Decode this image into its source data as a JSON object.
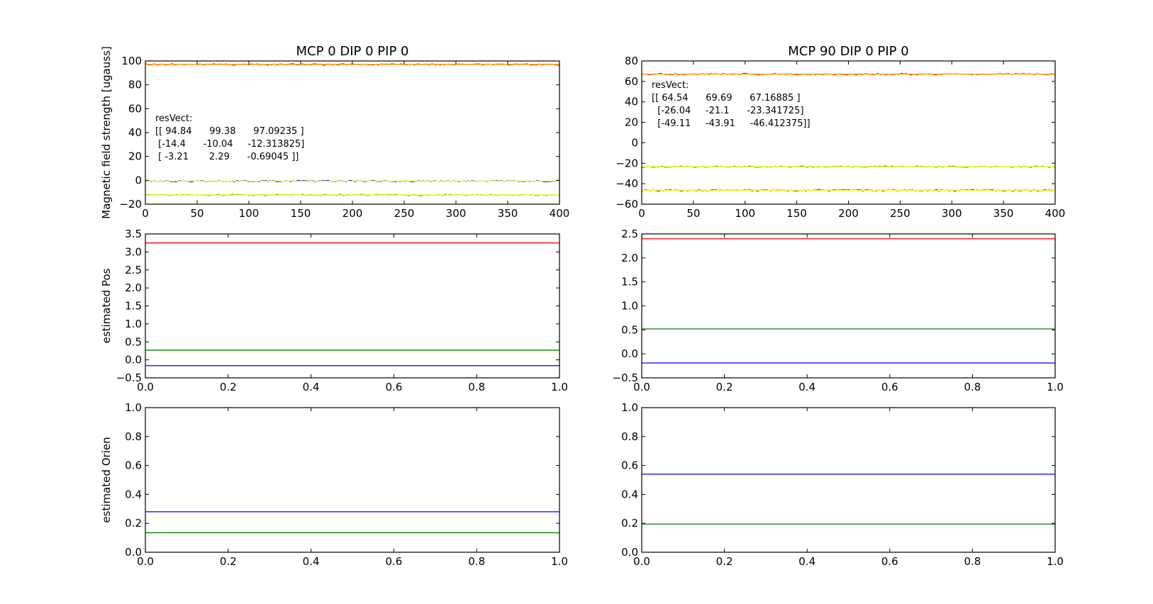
{
  "colors": {
    "x_measured": "#0000ff",
    "y_measured": "#008000",
    "z_measured": "#ff0000",
    "x_fit": "#ffff00",
    "y_fit": "#ffff00",
    "z_fit": "#ffa500"
  },
  "chart_data": [
    {
      "id": "field-left",
      "type": "line",
      "title": "MCP 0 DIP 0 PIP 0",
      "ylabel": "Magnetic field strength [ugauss]",
      "xlabel": "",
      "xlim": [
        0,
        400
      ],
      "ylim": [
        -20,
        100
      ],
      "xticks": [
        "0",
        "50",
        "100",
        "150",
        "200",
        "250",
        "300",
        "350",
        "400"
      ],
      "yticks": [
        "−20",
        "0",
        "20",
        "40",
        "60",
        "80",
        "100"
      ],
      "series": [
        {
          "key": "z",
          "color": "#ff0000",
          "fit_color": "#ffa500",
          "mean": 97.09235,
          "fit": 97.09235,
          "noise": 0.9
        },
        {
          "key": "x",
          "color": "#0000ff",
          "fit_color": "#ffff00",
          "mean": -0.69045,
          "fit": -0.69045,
          "noise": 0.8
        },
        {
          "key": "y",
          "color": "#008000",
          "fit_color": "#ffff00",
          "mean": -12.313825,
          "fit": -12.313825,
          "noise": 0.8
        }
      ],
      "annotation": {
        "header": "resVect:",
        "lines": [
          "[[ 94.84      99.38      97.09235 ]",
          " [-14.4      -10.04     -12.313825]",
          " [ -3.21       2.29      -0.69045 ]]"
        ]
      }
    },
    {
      "id": "field-right",
      "type": "line",
      "title": "MCP 90 DIP 0 PIP 0",
      "ylabel": "",
      "xlabel": "",
      "xlim": [
        0,
        400
      ],
      "ylim": [
        -60,
        80
      ],
      "xticks": [
        "0",
        "50",
        "100",
        "150",
        "200",
        "250",
        "300",
        "350",
        "400"
      ],
      "yticks": [
        "−60",
        "−40",
        "−20",
        "0",
        "20",
        "40",
        "60",
        "80"
      ],
      "series": [
        {
          "key": "z",
          "color": "#ff0000",
          "fit_color": "#ffa500",
          "mean": 67.16885,
          "fit": 67.16885,
          "noise": 1.0
        },
        {
          "key": "y",
          "color": "#008000",
          "fit_color": "#ffff00",
          "mean": -23.341725,
          "fit": -23.341725,
          "noise": 0.9
        },
        {
          "key": "x",
          "color": "#0000ff",
          "fit_color": "#ffff00",
          "mean": -46.412375,
          "fit": -46.412375,
          "noise": 0.9
        }
      ],
      "annotation": {
        "header": "resVect:",
        "lines": [
          "[[ 64.54      69.69      67.16885 ]",
          "  [-26.04     -21.1      -23.341725]",
          "  [-49.11     -43.91     -46.412375]]"
        ]
      }
    },
    {
      "id": "pos-left",
      "type": "line",
      "title": "",
      "ylabel": "estimated Pos",
      "xlabel": "",
      "xlim": [
        0,
        1
      ],
      "ylim": [
        -0.5,
        3.5
      ],
      "xticks": [
        "0.0",
        "0.2",
        "0.4",
        "0.6",
        "0.8",
        "1.0"
      ],
      "yticks": [
        "−0.5",
        "0.0",
        "0.5",
        "1.0",
        "1.5",
        "2.0",
        "2.5",
        "3.0",
        "3.5"
      ],
      "series": [
        {
          "key": "z",
          "color": "#ff0000",
          "value": 3.25
        },
        {
          "key": "y",
          "color": "#008000",
          "value": 0.27
        },
        {
          "key": "x",
          "color": "#0000ff",
          "value": -0.16
        }
      ]
    },
    {
      "id": "pos-right",
      "type": "line",
      "title": "",
      "ylabel": "",
      "xlabel": "",
      "xlim": [
        0,
        1
      ],
      "ylim": [
        -0.5,
        2.5
      ],
      "xticks": [
        "0.0",
        "0.2",
        "0.4",
        "0.6",
        "0.8",
        "1.0"
      ],
      "yticks": [
        "−0.5",
        "0.0",
        "0.5",
        "1.0",
        "1.5",
        "2.0",
        "2.5"
      ],
      "series": [
        {
          "key": "z",
          "color": "#ff0000",
          "value": 2.4
        },
        {
          "key": "y",
          "color": "#008000",
          "value": 0.52
        },
        {
          "key": "x",
          "color": "#0000ff",
          "value": -0.19
        }
      ]
    },
    {
      "id": "orien-left",
      "type": "line",
      "title": "",
      "ylabel": "estimated Orien",
      "xlabel": "",
      "xlim": [
        0,
        1
      ],
      "ylim": [
        0,
        1
      ],
      "xticks": [
        "0.0",
        "0.2",
        "0.4",
        "0.6",
        "0.8",
        "1.0"
      ],
      "yticks": [
        "0.0",
        "0.2",
        "0.4",
        "0.6",
        "0.8",
        "1.0"
      ],
      "series": [
        {
          "key": "x",
          "color": "#0000ff",
          "value": 0.28
        },
        {
          "key": "y",
          "color": "#008000",
          "value": 0.135
        }
      ]
    },
    {
      "id": "orien-right",
      "type": "line",
      "title": "",
      "ylabel": "",
      "xlabel": "",
      "xlim": [
        0,
        1
      ],
      "ylim": [
        0,
        1
      ],
      "xticks": [
        "0.0",
        "0.2",
        "0.4",
        "0.6",
        "0.8",
        "1.0"
      ],
      "yticks": [
        "0.0",
        "0.2",
        "0.4",
        "0.6",
        "0.8",
        "1.0"
      ],
      "series": [
        {
          "key": "x",
          "color": "#0000ff",
          "value": 0.54
        },
        {
          "key": "y",
          "color": "#008000",
          "value": 0.195
        }
      ]
    }
  ]
}
